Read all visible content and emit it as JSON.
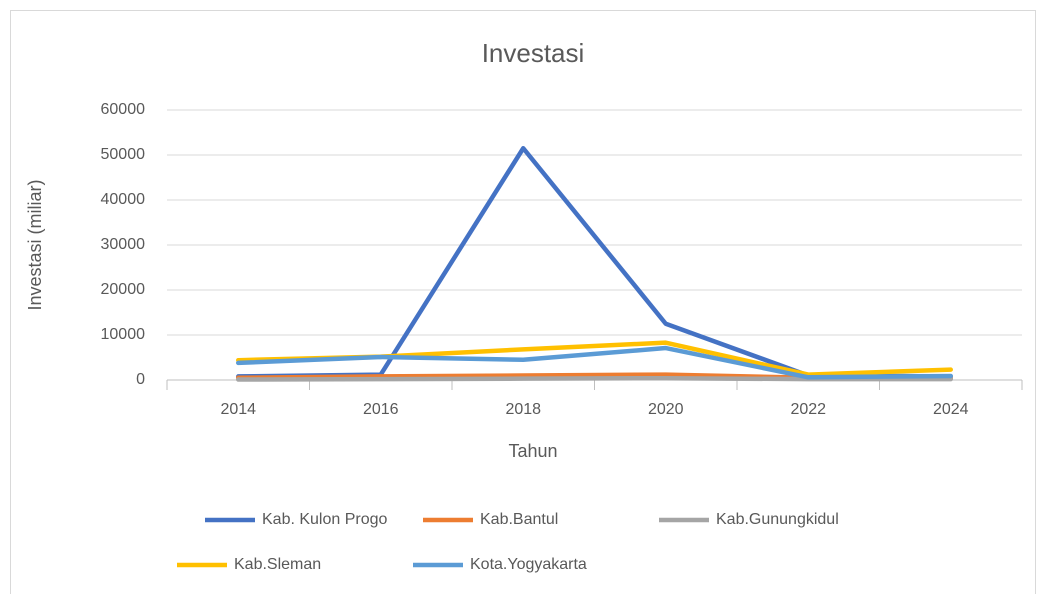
{
  "chart_data": {
    "type": "line",
    "title": "Investasi",
    "x_label": "Tahun",
    "y_label": "Investasi (miliar)",
    "categories": [
      "2014",
      "2016",
      "2018",
      "2020",
      "2022",
      "2024"
    ],
    "series": [
      {
        "name": "Kab. Kulon Progo",
        "color": "#4472c4",
        "values": [
          800,
          1200,
          51500,
          12500,
          1000,
          800
        ]
      },
      {
        "name": "Kab.Bantul",
        "color": "#ed7d31",
        "values": [
          500,
          800,
          1000,
          1200,
          500,
          400
        ]
      },
      {
        "name": "Kab.Gunungkidul",
        "color": "#a5a5a5",
        "values": [
          100,
          200,
          300,
          400,
          200,
          200
        ]
      },
      {
        "name": "Kab.Sleman",
        "color": "#ffc000",
        "values": [
          4400,
          5200,
          6800,
          8300,
          1200,
          2300
        ]
      },
      {
        "name": "Kota.Yogyakarta",
        "color": "#5b9bd5",
        "values": [
          3800,
          5100,
          4500,
          7100,
          600,
          900
        ]
      }
    ],
    "ylim": [
      0,
      60000
    ],
    "yticks": [
      0,
      10000,
      20000,
      30000,
      40000,
      50000,
      60000
    ],
    "grid": true,
    "legend": "bottom"
  }
}
